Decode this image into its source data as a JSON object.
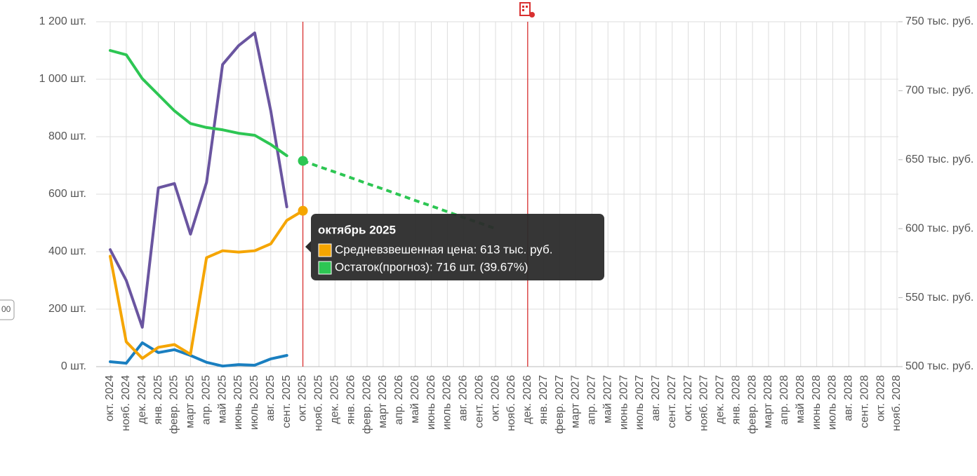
{
  "chart_data": {
    "type": "line",
    "categories": [
      "окт. 2024",
      "нояб. 2024",
      "дек. 2024",
      "янв. 2025",
      "февр. 2025",
      "март 2025",
      "апр. 2025",
      "май 2025",
      "июнь 2025",
      "июль 2025",
      "авг. 2025",
      "сент. 2025",
      "окт. 2025",
      "нояб. 2025",
      "дек. 2025",
      "янв. 2026",
      "февр. 2026",
      "март 2026",
      "апр. 2026",
      "май 2026",
      "июнь 2026",
      "июль 2026",
      "авг. 2026",
      "сент. 2026",
      "окт. 2026",
      "нояб. 2026",
      "дек. 2026",
      "янв. 2027",
      "февр. 2027",
      "март 2027",
      "апр. 2027",
      "май 2027",
      "июнь 2027",
      "июль 2027",
      "авг. 2027",
      "сент. 2027",
      "окт. 2027",
      "нояб. 2027",
      "дек. 2027",
      "янв. 2028",
      "февр. 2028",
      "март 2028",
      "апр. 2028",
      "май 2028",
      "июнь 2028",
      "июль 2028",
      "авг. 2028",
      "сент. 2028",
      "окт. 2028",
      "нояб. 2028"
    ],
    "series": [
      {
        "color": "#6a55a0",
        "values": [
          407,
          300,
          137,
          622,
          637,
          461,
          641,
          1051,
          1117,
          1161,
          890,
          556,
          null,
          null,
          null,
          null,
          null,
          null,
          null,
          null,
          null,
          null,
          null,
          null,
          null,
          null,
          null,
          null,
          null,
          null,
          null,
          null,
          null,
          null,
          null,
          null,
          null,
          null,
          null,
          null,
          null,
          null,
          null,
          null,
          null,
          null,
          null,
          null,
          null,
          null
        ]
      },
      {
        "color": "#1a7fc0",
        "values": [
          17,
          12,
          83,
          49,
          59,
          39,
          15,
          2,
          7,
          5,
          27,
          39,
          null,
          null,
          null,
          null,
          null,
          null,
          null,
          null,
          null,
          null,
          null,
          null,
          null,
          null,
          null,
          null,
          null,
          null,
          null,
          null,
          null,
          null,
          null,
          null,
          null,
          null,
          null,
          null,
          null,
          null,
          null,
          null,
          null,
          null,
          null,
          null,
          null,
          null
        ]
      },
      {
        "color": "#f5a500",
        "axis": "y2",
        "values": [
          580,
          518,
          506,
          514,
          516,
          509,
          579,
          584,
          583,
          584,
          589,
          606,
          613,
          null,
          null,
          null,
          null,
          null,
          null,
          null,
          null,
          null,
          null,
          null,
          null,
          null,
          null,
          null,
          null,
          null,
          null,
          null,
          null,
          null,
          null,
          null,
          null,
          null,
          null,
          null,
          null,
          null,
          null,
          null,
          null,
          null,
          null,
          null,
          null,
          null
        ]
      },
      {
        "color": "#2dc653",
        "values": [
          1100,
          1085,
          1002,
          946,
          890,
          846,
          832,
          824,
          812,
          805,
          773,
          734,
          null,
          null,
          null,
          null,
          null,
          null,
          null,
          null,
          null,
          null,
          null,
          null,
          null,
          null,
          null,
          null,
          null,
          null,
          null,
          null,
          null,
          null,
          null,
          null,
          null,
          null,
          null,
          null,
          null,
          null,
          null,
          null,
          null,
          null,
          null,
          null,
          null,
          null
        ]
      },
      {
        "color": "#2dc653",
        "dashed": true,
        "values": [
          null,
          null,
          null,
          null,
          null,
          null,
          null,
          null,
          null,
          null,
          null,
          null,
          716,
          696,
          677,
          657,
          637,
          618,
          598,
          578,
          559,
          539,
          519,
          500,
          480,
          null,
          null,
          null,
          null,
          null,
          null,
          null,
          null,
          null,
          null,
          null,
          null,
          null,
          null,
          null,
          null,
          null,
          null,
          null,
          null,
          null,
          null,
          null,
          null,
          null
        ]
      }
    ],
    "ylim": [
      0,
      1200
    ],
    "yticks": [
      {
        "value": 0,
        "label": "0 шт."
      },
      {
        "value": 200,
        "label": "200 шт."
      },
      {
        "value": 400,
        "label": "400 шт."
      },
      {
        "value": 600,
        "label": "600 шт."
      },
      {
        "value": 800,
        "label": "800 шт."
      },
      {
        "value": 1000,
        "label": "1 000 шт."
      },
      {
        "value": 1200,
        "label": "1 200 шт."
      }
    ],
    "y2lim": [
      500,
      750
    ],
    "y2ticks": [
      {
        "value": 500,
        "label": "500 тыс. руб."
      },
      {
        "value": 550,
        "label": "550 тыс. руб."
      },
      {
        "value": 600,
        "label": "600 тыс. руб."
      },
      {
        "value": 650,
        "label": "650 тыс. руб."
      },
      {
        "value": 700,
        "label": "700 тыс. руб."
      },
      {
        "value": 750,
        "label": "750 тыс. руб."
      }
    ],
    "grid": true,
    "vlines": {
      "color": "#d93030",
      "at": [
        12,
        26
      ]
    },
    "tooltip": {
      "title": "октябрь 2025",
      "index": 12,
      "items": [
        {
          "series": 2,
          "text": "Средневзвешенная цена: 613 тыс. руб."
        },
        {
          "series": 4,
          "text": "Остаток(прогноз): 716 шт. (39.67%)"
        }
      ]
    },
    "side_button": "00"
  }
}
